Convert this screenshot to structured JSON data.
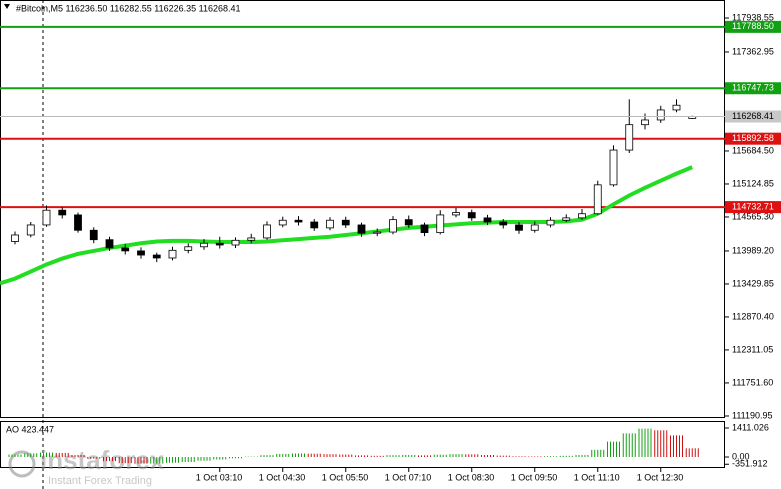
{
  "chart_data": {
    "type": "candlestick",
    "title": "#Bitcoin,M5  116236.50 116282.55 116226.35 116268.41",
    "categories": [
      null,
      null,
      null,
      null,
      null,
      null,
      null,
      null,
      null,
      null,
      null,
      null,
      null,
      "1 Oct 03:10",
      null,
      null,
      null,
      "1 Oct 04:30",
      null,
      null,
      null,
      "1 Oct 05:50",
      null,
      null,
      null,
      "1 Oct 07:10",
      null,
      null,
      null,
      "1 Oct 08:30",
      null,
      null,
      null,
      "1 Oct 09:50",
      null,
      null,
      null,
      "1 Oct 11:10",
      null,
      null,
      null,
      "1 Oct 12:30",
      null,
      null
    ],
    "open": [
      114150,
      114260,
      114430,
      114680,
      114600,
      114340,
      114180,
      114040,
      113990,
      113920,
      113870,
      114000,
      114060,
      114120,
      114090,
      114170,
      114210,
      114430,
      114510,
      114480,
      114380,
      114510,
      114430,
      114290,
      114310,
      114520,
      114430,
      114300,
      114600,
      114640,
      114550,
      114480,
      114430,
      114340,
      114430,
      114510,
      114550,
      114620,
      115110,
      115700,
      116130,
      116210,
      116380,
      116236.5
    ],
    "high": [
      114320,
      114480,
      114760,
      114730,
      114640,
      114390,
      114230,
      114110,
      114050,
      113960,
      114060,
      114120,
      114190,
      114230,
      114220,
      114280,
      114490,
      114570,
      114580,
      114530,
      114560,
      114570,
      114470,
      114370,
      114580,
      114590,
      114470,
      114680,
      114720,
      114690,
      114600,
      114530,
      114480,
      114490,
      114560,
      114610,
      114700,
      115180,
      115780,
      116560,
      116320,
      116450,
      116560,
      116282.55
    ],
    "low": [
      114100,
      114220,
      114400,
      114540,
      114300,
      114120,
      113990,
      113930,
      113860,
      113800,
      113830,
      113950,
      114010,
      114030,
      114040,
      114120,
      114180,
      114390,
      114420,
      114330,
      114340,
      114380,
      114230,
      114240,
      114270,
      114380,
      114240,
      114270,
      114560,
      114500,
      114430,
      114370,
      114280,
      114300,
      114390,
      114480,
      114520,
      114600,
      115080,
      115650,
      116050,
      116160,
      116340,
      116226.35
    ],
    "close": [
      114260,
      114430,
      114680,
      114600,
      114340,
      114180,
      114040,
      113990,
      113920,
      113870,
      114000,
      114060,
      114120,
      114090,
      114170,
      114210,
      114430,
      114510,
      114480,
      114380,
      114510,
      114430,
      114290,
      114310,
      114520,
      114430,
      114300,
      114600,
      114640,
      114550,
      114480,
      114430,
      114340,
      114430,
      114510,
      114550,
      114620,
      115110,
      115700,
      116130,
      116210,
      116380,
      116460,
      116268.41
    ],
    "ma": {
      "color": "#22dd22",
      "values": [
        113520,
        113640,
        113760,
        113860,
        113940,
        113990,
        114040,
        114080,
        114120,
        114150,
        114160,
        114160,
        114150,
        114140,
        114140,
        114140,
        114150,
        114170,
        114190,
        114210,
        114230,
        114260,
        114290,
        114320,
        114350,
        114380,
        114400,
        114420,
        114440,
        114460,
        114470,
        114480,
        114480,
        114480,
        114480,
        114490,
        114520,
        114620,
        114780,
        114930,
        115060,
        115180,
        115300,
        115410
      ]
    },
    "ylim": [
      111157,
      118244
    ],
    "yticks": [
      117938.55,
      117362.95,
      {
        "value": 115684.5,
        "label": "115684.50"
      },
      115124.85,
      {
        "value": 114565.3,
        "label": "114565.30"
      },
      {
        "value": 113989.2,
        "label": "113989.20"
      },
      113429.85,
      {
        "value": 112870.4,
        "label": "112870.40"
      },
      112311.05,
      {
        "value": 111751.6,
        "label": "111751.60"
      },
      111190.95
    ],
    "levels": [
      {
        "value": 117788.5,
        "label": "117788.50",
        "color": "#11a011"
      },
      {
        "value": 116747.73,
        "label": "116747.73",
        "color": "#11a011"
      },
      {
        "value": 115892.58,
        "label": "115892.58",
        "color": "#dd1111"
      },
      {
        "value": 114732.71,
        "label": "114732.71",
        "color": "#dd1111"
      }
    ],
    "current_price": 116268.41,
    "indicator": {
      "type": "bar",
      "title": "AO 423.447",
      "up_color": "#11a011",
      "down_color": "#cc1111",
      "values": [
        120,
        180,
        220,
        200,
        100,
        -80,
        -200,
        -300,
        -330,
        -320,
        -280,
        -240,
        -180,
        -120,
        -60,
        20,
        90,
        150,
        170,
        160,
        140,
        120,
        80,
        60,
        90,
        100,
        80,
        110,
        140,
        130,
        100,
        70,
        40,
        30,
        40,
        60,
        100,
        350,
        750,
        1150,
        1380,
        1300,
        1050,
        423.447
      ],
      "ylim": [
        -534,
        1702
      ],
      "yticks": [
        1411.026,
        {
          "value": 0,
          "label": "0.00"
        },
        -351.912
      ]
    },
    "watermark": {
      "brand": "instaforex",
      "slogan": "Instant Forex Trading"
    }
  }
}
